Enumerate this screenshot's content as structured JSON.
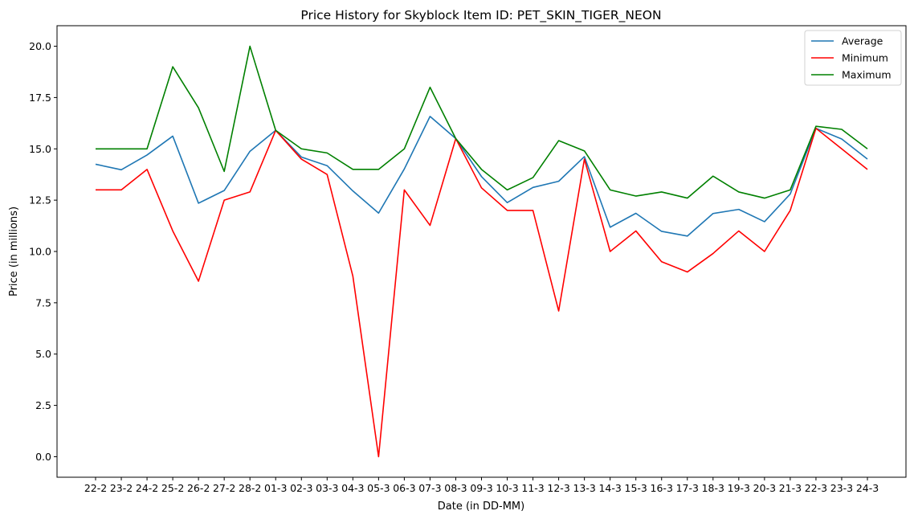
{
  "chart_data": {
    "type": "line",
    "title": "Price History for Skyblock Item ID: PET_SKIN_TIGER_NEON",
    "xlabel": "Date (in DD-MM)",
    "ylabel": "Price (in millions)",
    "ylim": [
      -1.0,
      21.0
    ],
    "yticks": [
      "0.0",
      "2.5",
      "5.0",
      "7.5",
      "10.0",
      "12.5",
      "15.0",
      "17.5",
      "20.0"
    ],
    "grid": false,
    "legend_position": "top-right",
    "categories": [
      "22-2",
      "23-2",
      "24-2",
      "25-2",
      "26-2",
      "27-2",
      "28-2",
      "01-3",
      "02-3",
      "03-3",
      "04-3",
      "05-3",
      "06-3",
      "07-3",
      "08-3",
      "09-3",
      "10-3",
      "11-3",
      "12-3",
      "13-3",
      "14-3",
      "15-3",
      "16-3",
      "17-3",
      "18-3",
      "19-3",
      "20-3",
      "21-3",
      "22-3",
      "23-3",
      "24-3"
    ],
    "series": [
      {
        "name": "Average",
        "color": "#1f77b4",
        "values": [
          14.25,
          13.98,
          14.7,
          15.62,
          12.35,
          12.97,
          14.88,
          15.9,
          14.6,
          14.18,
          12.95,
          11.87,
          14.02,
          16.58,
          15.5,
          13.65,
          12.38,
          13.12,
          13.42,
          14.62,
          11.18,
          11.86,
          10.98,
          10.75,
          11.85,
          12.05,
          11.45,
          12.8,
          16.0,
          15.48,
          14.5
        ]
      },
      {
        "name": "Minimum",
        "color": "#ff0000",
        "values": [
          13.0,
          13.0,
          14.0,
          11.0,
          8.55,
          12.5,
          12.9,
          15.9,
          14.5,
          13.75,
          8.8,
          0.0,
          13.0,
          11.27,
          15.5,
          13.1,
          12.0,
          12.0,
          7.1,
          14.5,
          10.0,
          11.0,
          9.5,
          9.0,
          9.9,
          11.0,
          10.0,
          12.0,
          16.0,
          15.0,
          14.0
        ]
      },
      {
        "name": "Maximum",
        "color": "#008000",
        "values": [
          15.0,
          15.0,
          15.0,
          19.0,
          17.0,
          13.9,
          20.0,
          15.9,
          15.0,
          14.8,
          14.0,
          14.0,
          15.0,
          18.0,
          15.5,
          14.0,
          13.0,
          13.6,
          15.4,
          14.9,
          13.0,
          12.7,
          12.9,
          12.6,
          13.67,
          12.9,
          12.6,
          13.0,
          16.1,
          15.95,
          15.0
        ]
      }
    ]
  }
}
